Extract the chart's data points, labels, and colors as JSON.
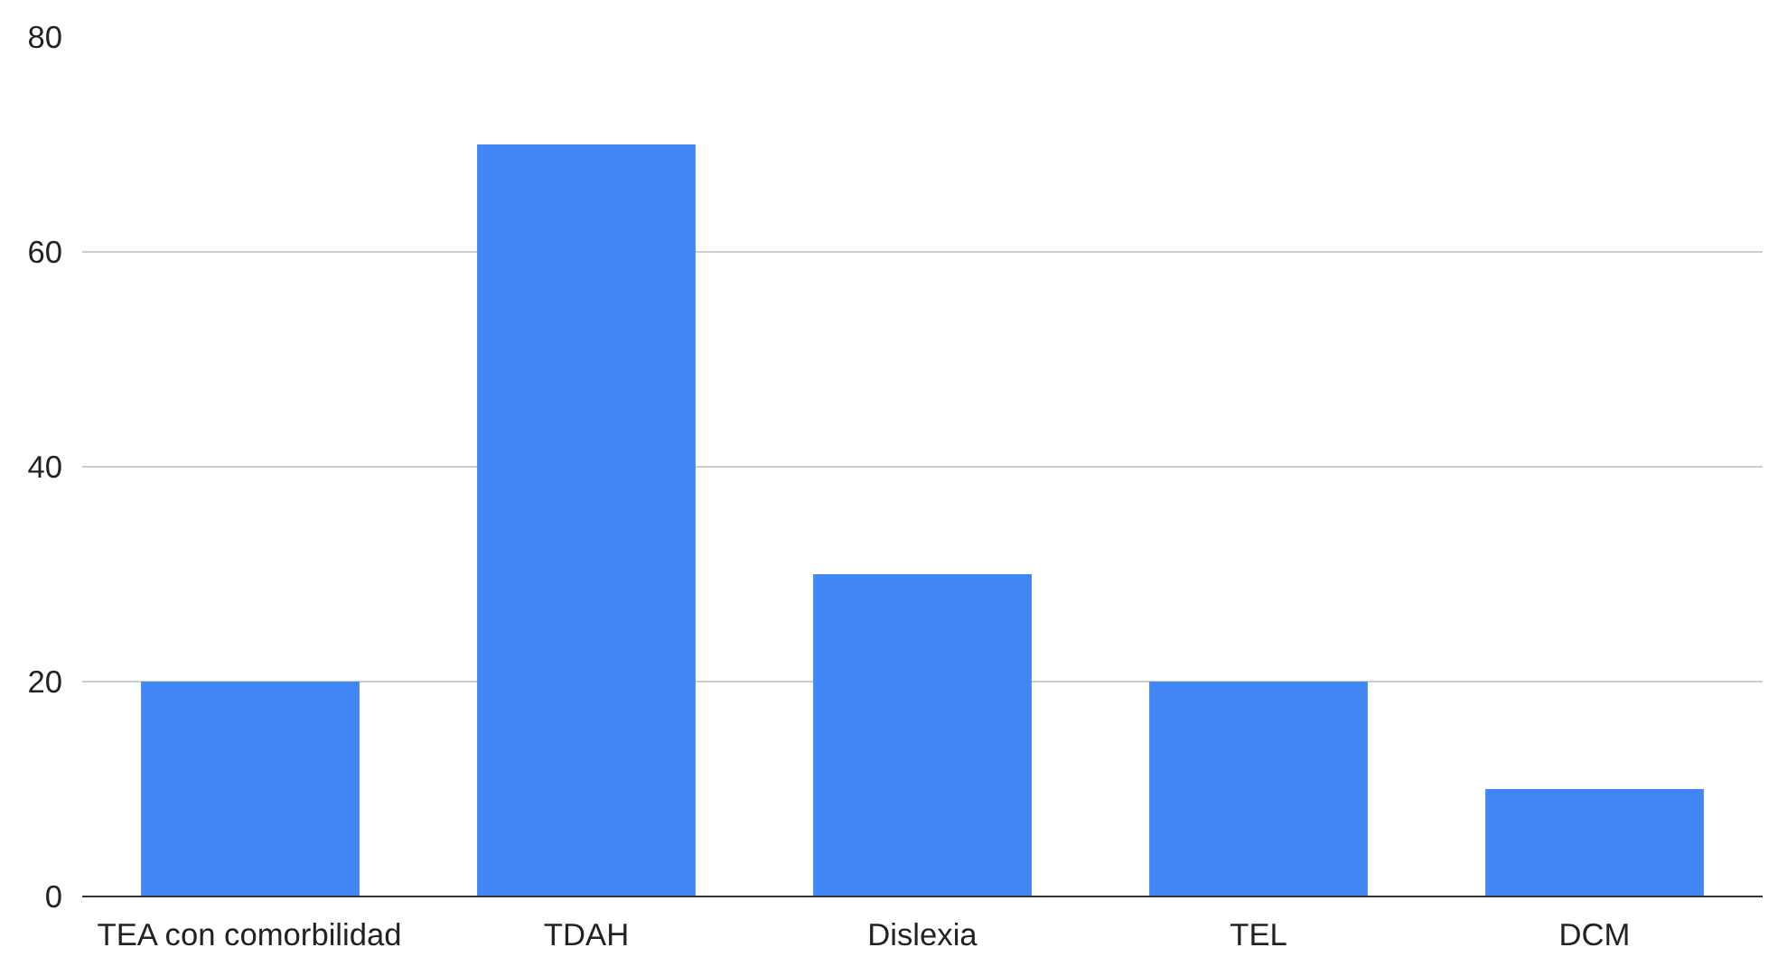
{
  "chart_data": {
    "type": "bar",
    "categories": [
      "TEA con comorbilidad",
      "TDAH",
      "Dislexia",
      "TEL",
      "DCM"
    ],
    "values": [
      20,
      70,
      30,
      20,
      10
    ],
    "color": "#4285f4",
    "ylim": [
      0,
      80
    ],
    "yticks": [
      0,
      20,
      40,
      60,
      80
    ],
    "grid": "y"
  }
}
